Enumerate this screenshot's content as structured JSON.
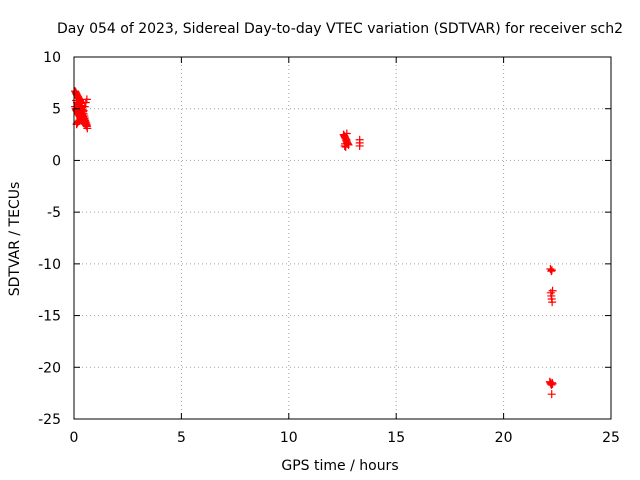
{
  "chart_data": {
    "type": "scatter",
    "title": "Day 054 of 2023, Sidereal Day-to-day VTEC variation (SDTVAR) for receiver sch2",
    "xlabel": "GPS time / hours",
    "ylabel": "SDTVAR / TECUs",
    "xlim": [
      0,
      25
    ],
    "ylim": [
      -25,
      10
    ],
    "xticks": [
      0,
      5,
      10,
      15,
      20,
      25
    ],
    "yticks": [
      -25,
      -20,
      -15,
      -10,
      -5,
      0,
      5,
      10
    ],
    "xtick_labels": [
      "0",
      "5",
      "10",
      "15",
      "20",
      "25"
    ],
    "ytick_labels": [
      "-25",
      "-20",
      "-15",
      "-10",
      "-5",
      "0",
      "5",
      "10"
    ],
    "grid": true,
    "marker": "plus",
    "color": "#ff0000",
    "series": [
      {
        "name": "SDTVAR",
        "x": [
          0.05,
          0.08,
          0.1,
          0.12,
          0.15,
          0.18,
          0.2,
          0.22,
          0.25,
          0.28,
          0.3,
          0.32,
          0.35,
          0.38,
          0.4,
          0.42,
          0.45,
          0.48,
          0.5,
          0.52,
          0.55,
          0.58,
          0.6,
          0.62,
          0.05,
          0.08,
          0.1,
          0.12,
          0.15,
          0.18,
          0.2,
          0.22,
          0.25,
          0.28,
          0.3,
          0.33,
          0.36,
          0.4,
          0.44,
          0.48,
          0.52,
          0.56,
          0.6,
          0.12,
          0.15,
          0.18,
          0.22,
          0.26,
          0.3,
          0.35,
          0.4,
          0.45,
          0.5,
          0.55,
          0.6,
          0.1,
          0.14,
          0.18,
          0.22,
          0.26,
          0.3,
          0.34,
          0.38,
          0.42,
          0.46,
          0.5,
          0.54,
          0.58,
          12.55,
          12.58,
          12.6,
          12.62,
          12.65,
          12.68,
          12.7,
          12.72,
          12.75,
          12.78,
          12.6,
          12.65,
          12.7,
          12.62,
          12.68,
          13.3,
          13.3,
          13.3,
          22.18,
          22.22,
          22.25,
          22.2,
          22.22,
          22.24,
          22.26,
          22.28,
          22.15,
          22.18,
          22.2,
          22.23,
          22.26,
          22.28,
          22.24
        ],
        "y": [
          6.7,
          6.6,
          6.5,
          6.4,
          6.3,
          6.2,
          6.1,
          6.0,
          5.9,
          5.8,
          5.7,
          5.5,
          5.3,
          5.1,
          4.9,
          4.7,
          4.5,
          4.3,
          4.1,
          3.9,
          3.7,
          3.5,
          3.3,
          3.1,
          5.2,
          5.0,
          4.9,
          4.8,
          4.7,
          4.6,
          4.5,
          4.4,
          4.3,
          4.2,
          4.1,
          4.0,
          3.9,
          3.8,
          3.7,
          3.6,
          3.5,
          3.4,
          3.3,
          3.5,
          3.6,
          3.7,
          3.8,
          3.9,
          4.0,
          4.2,
          4.5,
          4.8,
          5.2,
          5.6,
          5.9,
          5.8,
          5.6,
          5.4,
          5.2,
          5.0,
          4.8,
          4.6,
          4.4,
          4.2,
          4.0,
          3.8,
          3.6,
          3.4,
          2.5,
          2.4,
          2.3,
          2.2,
          2.1,
          1.9,
          1.8,
          1.7,
          1.6,
          1.5,
          1.4,
          1.3,
          2.6,
          1.6,
          2.0,
          2.0,
          1.7,
          1.4,
          -10.5,
          -10.7,
          -10.6,
          -12.8,
          -13.1,
          -13.4,
          -13.7,
          -12.6,
          -21.4,
          -21.5,
          -21.6,
          -21.7,
          -21.5,
          -21.6,
          -22.6
        ]
      }
    ]
  }
}
